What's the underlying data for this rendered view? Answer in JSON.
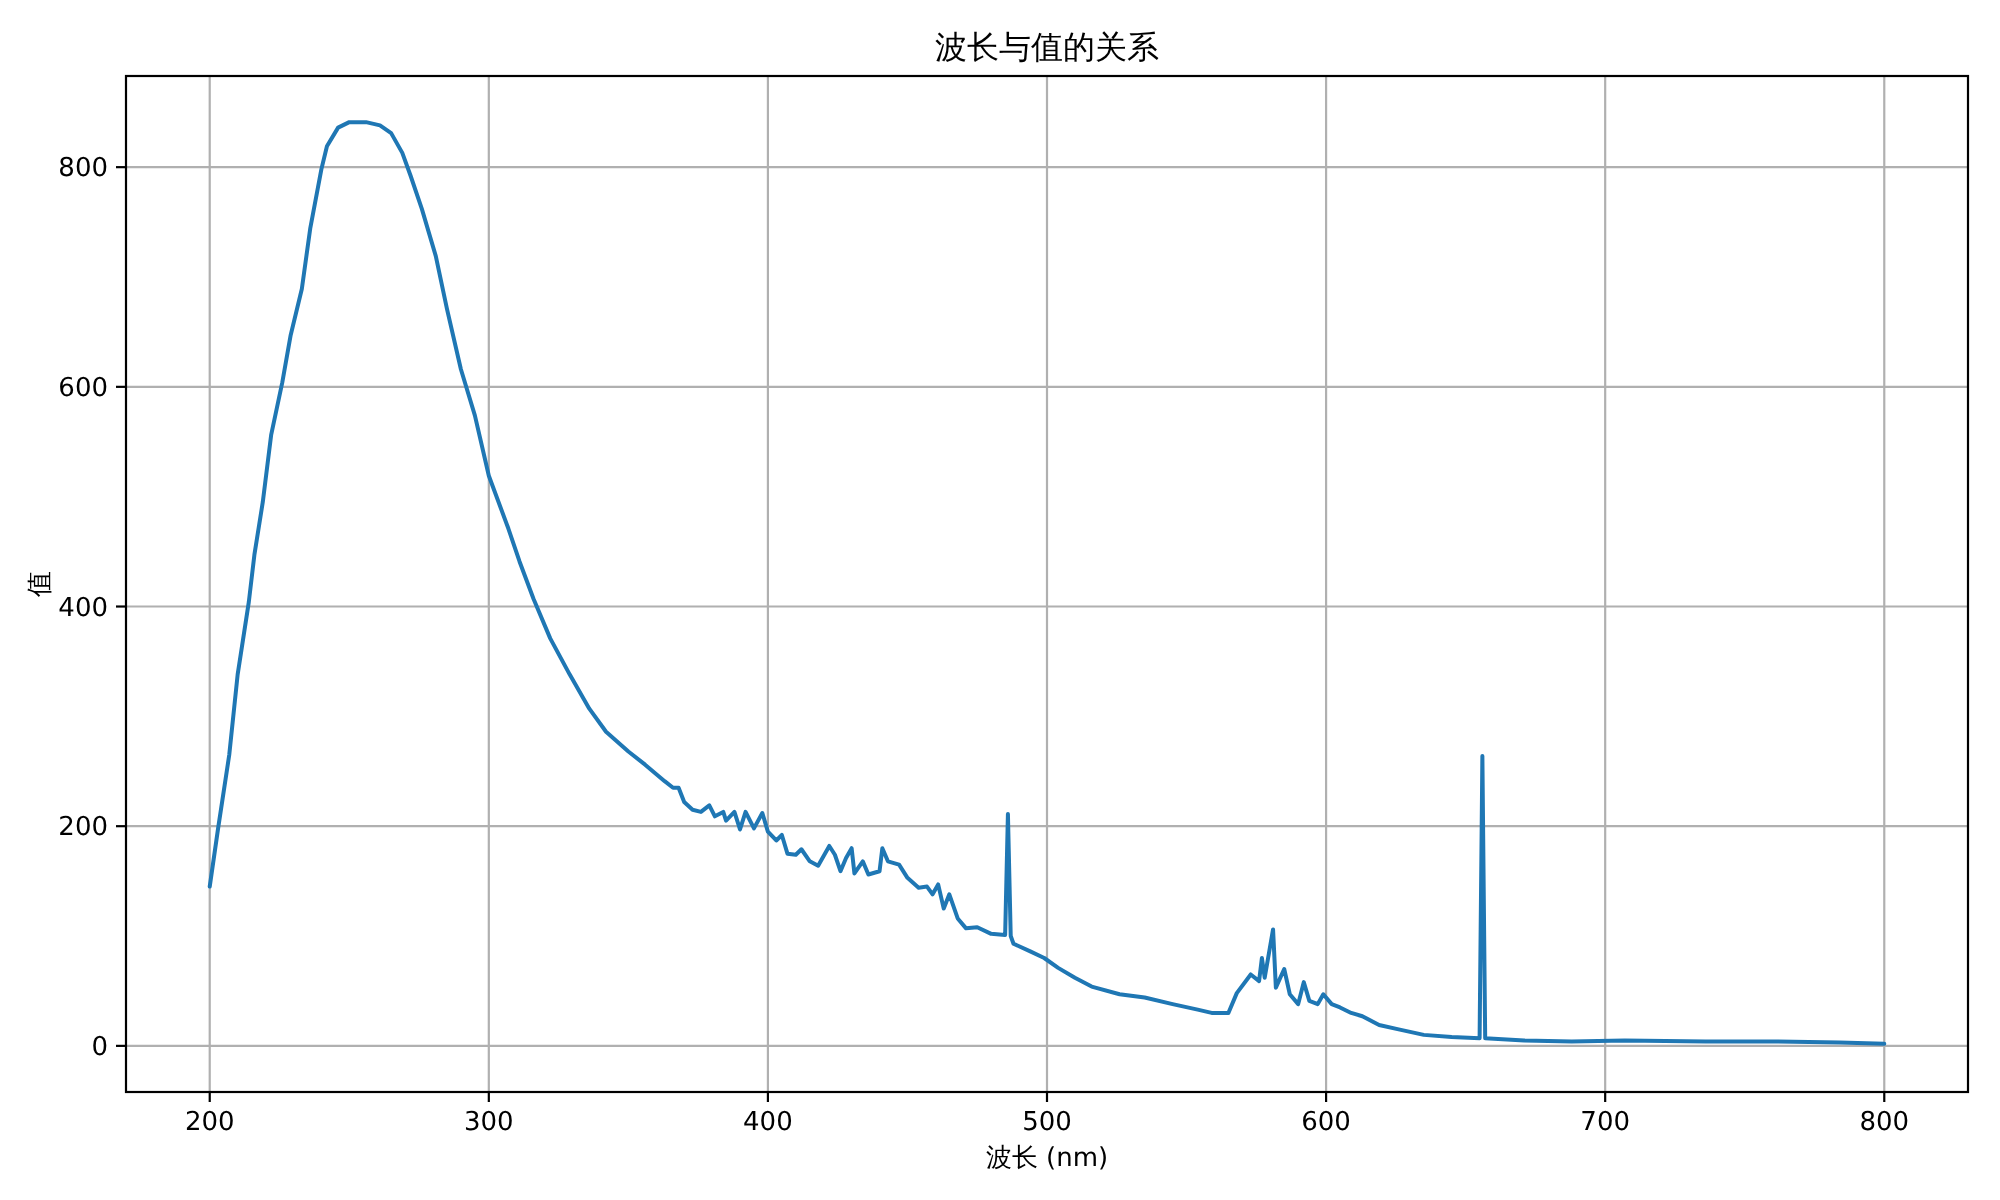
{
  "chart_data": {
    "type": "line",
    "title": "波长与值的关系",
    "xlabel": "波长 (nm)",
    "ylabel": "值",
    "x": [
      200,
      203,
      207,
      210,
      214,
      216,
      219,
      222,
      226,
      229,
      233,
      236,
      240,
      242,
      246,
      250,
      256,
      261,
      265,
      269,
      272,
      276,
      281,
      285,
      290,
      295,
      300,
      307,
      311,
      316,
      322,
      329,
      336,
      342,
      350,
      356,
      363,
      366,
      368,
      370,
      373,
      376,
      379,
      381,
      384,
      385,
      388,
      390,
      392,
      395,
      398,
      400,
      403,
      405,
      407,
      410,
      412,
      415,
      418,
      422,
      424,
      426,
      428,
      430,
      431,
      434,
      436,
      440,
      441,
      443,
      447,
      450,
      454,
      457,
      459,
      461,
      463,
      465,
      468,
      471,
      475,
      480,
      485,
      486,
      487,
      488,
      494,
      499,
      504,
      510,
      516,
      526,
      535,
      545,
      554,
      559,
      565,
      568,
      573,
      576,
      577,
      578,
      581,
      582,
      585,
      587,
      590,
      592,
      594,
      597,
      599,
      602,
      605,
      609,
      613,
      619,
      626,
      635,
      645,
      655,
      656,
      657,
      671,
      688,
      707,
      736,
      760,
      784,
      800
    ],
    "series": [
      {
        "color": "#1f77b4",
        "values": [
          145,
          198,
          265,
          338,
          404,
          447,
          495,
          556,
          604,
          647,
          689,
          744,
          798,
          819,
          836,
          841,
          841,
          838,
          831,
          813,
          792,
          762,
          719,
          671,
          616,
          574,
          519,
          471,
          441,
          407,
          371,
          338,
          307,
          286,
          268,
          256,
          241,
          235,
          235,
          222,
          215,
          213,
          219,
          209,
          213,
          205,
          213,
          197,
          213,
          198,
          212,
          195,
          187,
          192,
          175,
          174,
          179,
          168,
          164,
          182,
          174,
          159,
          171,
          180,
          157,
          168,
          156,
          159,
          180,
          168,
          165,
          153,
          144,
          145,
          138,
          147,
          125,
          138,
          116,
          107,
          108,
          102,
          101,
          211,
          100,
          93,
          86,
          80,
          71,
          62,
          54,
          47,
          44,
          38,
          33,
          30,
          30,
          48,
          65,
          59,
          80,
          62,
          106,
          53,
          70,
          47,
          38,
          58,
          41,
          38,
          47,
          38,
          35,
          30,
          27,
          19,
          15,
          10,
          8,
          7,
          264,
          7,
          5,
          4,
          5,
          4,
          4,
          3,
          2
        ]
      }
    ],
    "xlim": [
      170,
      830
    ],
    "ylim": [
      -42,
      883
    ],
    "xticks": [
      200,
      300,
      400,
      500,
      600,
      700,
      800
    ],
    "yticks": [
      0,
      200,
      400,
      600,
      800
    ],
    "grid": true
  }
}
